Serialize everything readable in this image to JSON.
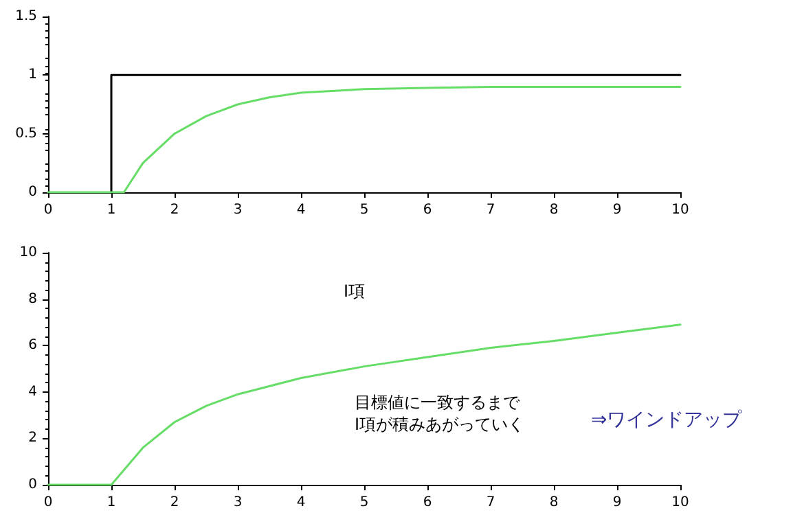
{
  "chart_data": [
    {
      "type": "line",
      "xlim": [
        0,
        10
      ],
      "xticks": [
        0,
        1,
        2,
        3,
        4,
        5,
        6,
        7,
        8,
        9,
        10
      ],
      "ylim": [
        0,
        1.5
      ],
      "yticks": [
        0,
        0.5,
        1,
        1.5
      ],
      "marker": "none",
      "line_style": "solid",
      "series": [
        {
          "color": "#000000",
          "x": [
            1,
            1,
            10
          ],
          "values": [
            0,
            1,
            1
          ]
        },
        {
          "color": "#66dd66",
          "x": [
            0,
            1.2,
            1.5,
            2,
            2.5,
            3,
            3.5,
            4,
            5,
            6,
            7,
            8,
            10
          ],
          "values": [
            0,
            0,
            0.25,
            0.5,
            0.65,
            0.75,
            0.81,
            0.85,
            0.88,
            0.89,
            0.9,
            0.9,
            0.9
          ]
        }
      ]
    },
    {
      "type": "line",
      "xlim": [
        0,
        10
      ],
      "xticks": [
        0,
        1,
        2,
        3,
        4,
        5,
        6,
        7,
        8,
        9,
        10
      ],
      "ylim": [
        0,
        10
      ],
      "yticks": [
        0,
        2,
        4,
        6,
        8,
        10
      ],
      "marker": "none",
      "line_style": "solid",
      "series": [
        {
          "color": "#66dd66",
          "x": [
            0,
            1,
            1.5,
            2,
            2.5,
            3,
            4,
            5,
            6,
            7,
            8,
            9,
            10
          ],
          "values": [
            0,
            0,
            1.6,
            2.7,
            3.4,
            3.9,
            4.6,
            5.1,
            5.5,
            5.9,
            6.2,
            6.55,
            6.9
          ]
        }
      ],
      "annotations": [
        "I項",
        "目標値に一致するまで\nI項が積みあがっていく",
        "⇒ワインドアップ"
      ]
    }
  ]
}
